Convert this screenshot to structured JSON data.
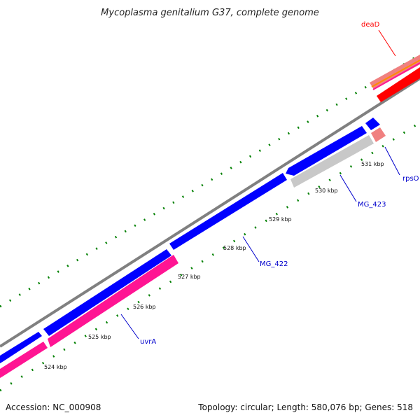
{
  "title": "Mycoplasma genitalium G37, complete genome",
  "footer": {
    "accession": "Accession: NC_000908",
    "summary": "Topology: circular; Length: 580,076 bp; Genes: 518"
  },
  "genes": [
    {
      "id": "deaD",
      "label": "deaD",
      "color": "#ff0000"
    },
    {
      "id": "rpsO",
      "label": "rpsO",
      "color": "#0000cc"
    },
    {
      "id": "MG_423",
      "label": "MG_423",
      "color": "#0000cc"
    },
    {
      "id": "MG_422",
      "label": "MG_422",
      "color": "#0000cc"
    },
    {
      "id": "uvrA",
      "label": "uvrA",
      "color": "#0000cc"
    }
  ],
  "ticks": [
    "524 kbp",
    "525 kbp",
    "526 kbp",
    "527 kbp",
    "528 kbp",
    "529 kbp",
    "530 kbp",
    "531 kbp"
  ],
  "colors": {
    "backbone": "#808080",
    "forward_cds": "#0000ff",
    "reverse_cds": "#ff1493",
    "gray_cds": "#c8c8c8",
    "tick": "#008000",
    "deaD": "#ff0000"
  }
}
